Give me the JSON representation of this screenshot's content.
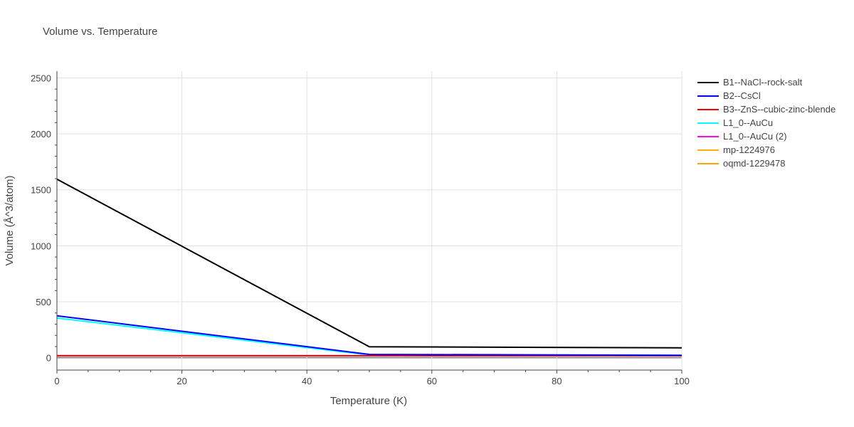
{
  "chart_data": {
    "type": "line",
    "title": "Volume vs. Temperature",
    "xlabel": "Temperature (K)",
    "ylabel": "Volume (Å^3/atom)",
    "xlim": [
      0,
      100
    ],
    "ylim": [
      -110,
      2560
    ],
    "xticks": [
      0,
      20,
      40,
      60,
      80,
      100
    ],
    "yticks": [
      0,
      500,
      1000,
      1500,
      2000,
      2500
    ],
    "grid": true,
    "legend_position": "right",
    "series": [
      {
        "name": "B1--NaCl--rock-salt",
        "color": "#000000",
        "x": [
          0,
          50,
          100
        ],
        "y": [
          1595,
          98,
          89
        ]
      },
      {
        "name": "B2--CsCl",
        "color": "#0000ff",
        "x": [
          0,
          50,
          100
        ],
        "y": [
          375,
          30,
          22
        ]
      },
      {
        "name": "B3--ZnS--cubic-zinc-blende",
        "color": "#ff0000",
        "x": [
          0,
          50,
          100
        ],
        "y": [
          18,
          18,
          18
        ]
      },
      {
        "name": "L1_0--AuCu",
        "color": "#00ffff",
        "x": [
          0,
          50,
          100
        ],
        "y": [
          355,
          25,
          20
        ]
      },
      {
        "name": "L1_0--AuCu (2)",
        "color": "#ff00ff",
        "x": [
          0,
          50,
          100
        ],
        "y": [
          18,
          18,
          18
        ]
      },
      {
        "name": "mp-1224976",
        "color": "#ffb000",
        "x": [
          0,
          50,
          100
        ],
        "y": [
          17,
          17,
          17
        ]
      },
      {
        "name": "oqmd-1229478",
        "color": "#ffa500",
        "x": [
          0,
          50,
          100
        ],
        "y": [
          17,
          17,
          17
        ]
      }
    ]
  }
}
